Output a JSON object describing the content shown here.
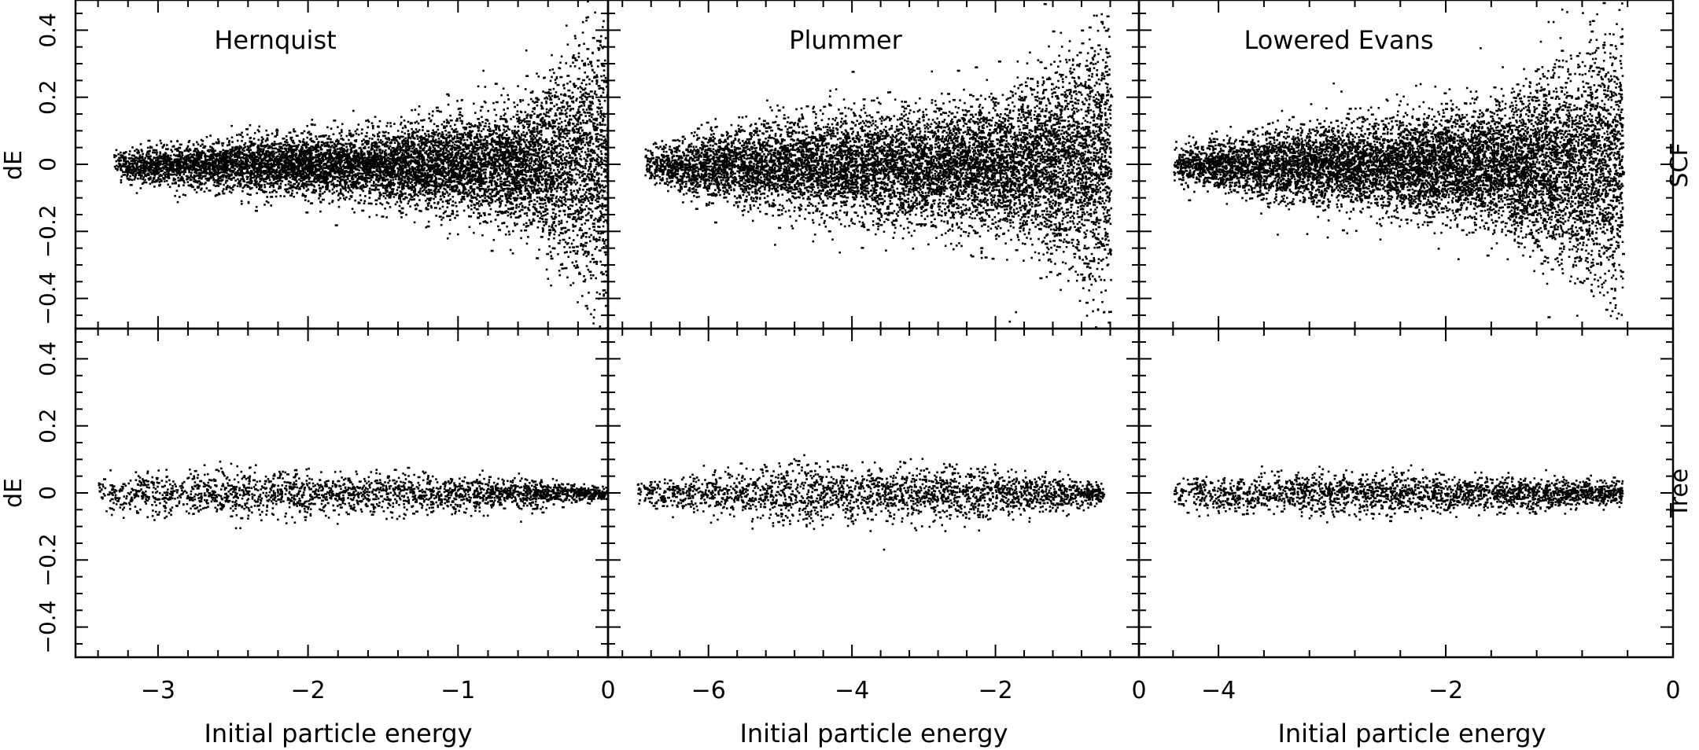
{
  "figure": {
    "shared_xlabel": "Initial particle energy",
    "shared_ylabel": "dE",
    "row_labels": [
      "SCF",
      "Tree"
    ],
    "column_titles": [
      "Hernquist",
      "Plummer",
      "Lowered Evans"
    ],
    "ink_color": "#000000",
    "background_color": "#ffffff"
  },
  "chart_data": [
    {
      "type": "scatter",
      "row": "SCF",
      "model": "Hernquist",
      "title": "Hernquist",
      "xlabel": "",
      "ylabel": "dE",
      "xlim": [
        -3.55,
        0
      ],
      "ylim": [
        -0.49,
        0.49
      ],
      "xticks": [
        -3,
        -2,
        -1,
        0
      ],
      "yticks": [
        -0.4,
        -0.2,
        0,
        0.2,
        0.4
      ],
      "ytick_labels": [
        "−0.4",
        "−0.2",
        "0",
        "0.2",
        "0.4"
      ],
      "grid": false,
      "point_count_approx": 40000,
      "envelope": {
        "x_start": -3.3,
        "x_end": 0,
        "x_samples": [
          -3.3,
          -2.5,
          -1.5,
          -0.9,
          -0.5,
          -0.3,
          -0.05
        ],
        "dE_spread": [
          0.05,
          0.09,
          0.12,
          0.17,
          0.22,
          0.34,
          0.49
        ]
      }
    },
    {
      "type": "scatter",
      "row": "SCF",
      "model": "Plummer",
      "title": "Plummer",
      "xlabel": "",
      "ylabel": "",
      "xlim": [
        -7.4,
        0
      ],
      "ylim": [
        -0.49,
        0.49
      ],
      "xticks": [
        -6,
        -4,
        -2,
        0
      ],
      "grid": false,
      "point_count_approx": 45000,
      "envelope": {
        "x_start": -6.9,
        "x_end": -0.4,
        "x_samples": [
          -6.9,
          -6,
          -4,
          -2,
          -1,
          -0.5
        ],
        "dE_spread": [
          0.05,
          0.12,
          0.18,
          0.22,
          0.34,
          0.46
        ]
      }
    },
    {
      "type": "scatter",
      "row": "SCF",
      "model": "Lowered Evans",
      "title": "Lowered Evans",
      "xlabel": "",
      "ylabel": "",
      "xlim": [
        -4.7,
        0
      ],
      "ylim": [
        -0.49,
        0.49
      ],
      "xticks": [
        -4,
        -2,
        0
      ],
      "grid": false,
      "point_count_approx": 45000,
      "envelope": {
        "x_start": -4.4,
        "x_end": -0.45,
        "x_samples": [
          -4.4,
          -3.5,
          -2.5,
          -1.5,
          -1,
          -0.5
        ],
        "dE_spread": [
          0.06,
          0.12,
          0.16,
          0.22,
          0.32,
          0.47
        ]
      }
    },
    {
      "type": "scatter",
      "row": "Tree",
      "model": "Hernquist",
      "xlabel": "Initial particle energy",
      "ylabel": "dE",
      "xlim": [
        -3.55,
        0
      ],
      "ylim": [
        -0.49,
        0.49
      ],
      "xticks": [
        -3,
        -2,
        -1,
        0
      ],
      "xtick_labels": [
        "−3",
        "−2",
        "−1",
        "0"
      ],
      "yticks": [
        -0.4,
        -0.2,
        0,
        0.2,
        0.4
      ],
      "ytick_labels": [
        "−0.4",
        "−0.2",
        "0",
        "0.2",
        "0.4"
      ],
      "grid": false,
      "point_count_approx": 4000,
      "envelope": {
        "x_start": -3.4,
        "x_end": 0,
        "x_samples": [
          -3.4,
          -2.5,
          -1.5,
          -0.5,
          0
        ],
        "dE_spread": [
          0.06,
          0.08,
          0.07,
          0.05,
          0.02
        ]
      }
    },
    {
      "type": "scatter",
      "row": "Tree",
      "model": "Plummer",
      "xlabel": "Initial particle energy",
      "ylabel": "",
      "xlim": [
        -7.4,
        0
      ],
      "ylim": [
        -0.49,
        0.49
      ],
      "xticks": [
        -6,
        -4,
        -2,
        0
      ],
      "xtick_labels": [
        "−6",
        "−4",
        "−2",
        "0"
      ],
      "grid": false,
      "point_count_approx": 4000,
      "envelope": {
        "x_start": -7.0,
        "x_end": -0.5,
        "x_samples": [
          -7,
          -5,
          -3,
          -1,
          -0.5
        ],
        "dE_spread": [
          0.04,
          0.1,
          0.1,
          0.06,
          0.03
        ]
      }
    },
    {
      "type": "scatter",
      "row": "Tree",
      "model": "Lowered Evans",
      "xlabel": "Initial particle energy",
      "ylabel": "",
      "xlim": [
        -4.7,
        0
      ],
      "ylim": [
        -0.49,
        0.49
      ],
      "xticks": [
        -4,
        -2,
        0
      ],
      "xtick_labels": [
        "−4",
        "−2",
        "0"
      ],
      "grid": false,
      "point_count_approx": 4000,
      "envelope": {
        "x_start": -4.4,
        "x_end": -0.45,
        "x_samples": [
          -4.4,
          -3,
          -1.5,
          -0.5
        ],
        "dE_spread": [
          0.06,
          0.07,
          0.06,
          0.04
        ]
      }
    }
  ]
}
